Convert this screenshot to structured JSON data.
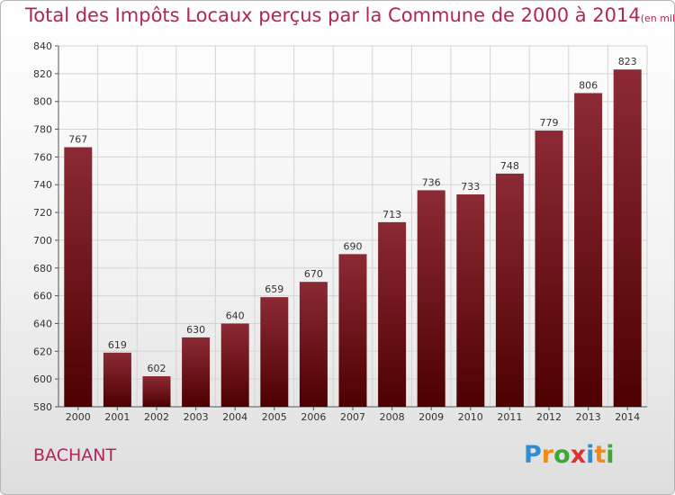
{
  "header": {
    "title": "Total des Impôts Locaux perçus par la Commune de 2000 à 2014",
    "unit": "(en milliers d'€)"
  },
  "commune": "BACHANT",
  "logo": {
    "text": "Proxiti"
  },
  "colors": {
    "title": "#b3245a",
    "bar_top": "#8c2a34",
    "bar_bottom": "#4d0000"
  },
  "chart_data": {
    "type": "bar",
    "categories": [
      "2000",
      "2001",
      "2002",
      "2003",
      "2004",
      "2005",
      "2006",
      "2007",
      "2008",
      "2009",
      "2010",
      "2011",
      "2012",
      "2013",
      "2014"
    ],
    "values": [
      767,
      619,
      602,
      630,
      640,
      659,
      670,
      690,
      713,
      736,
      733,
      748,
      779,
      806,
      823
    ],
    "ylim": [
      580,
      840
    ],
    "yticks": [
      580,
      600,
      620,
      640,
      660,
      680,
      700,
      720,
      740,
      760,
      780,
      800,
      820,
      840
    ],
    "grid": true,
    "legend": "none"
  }
}
